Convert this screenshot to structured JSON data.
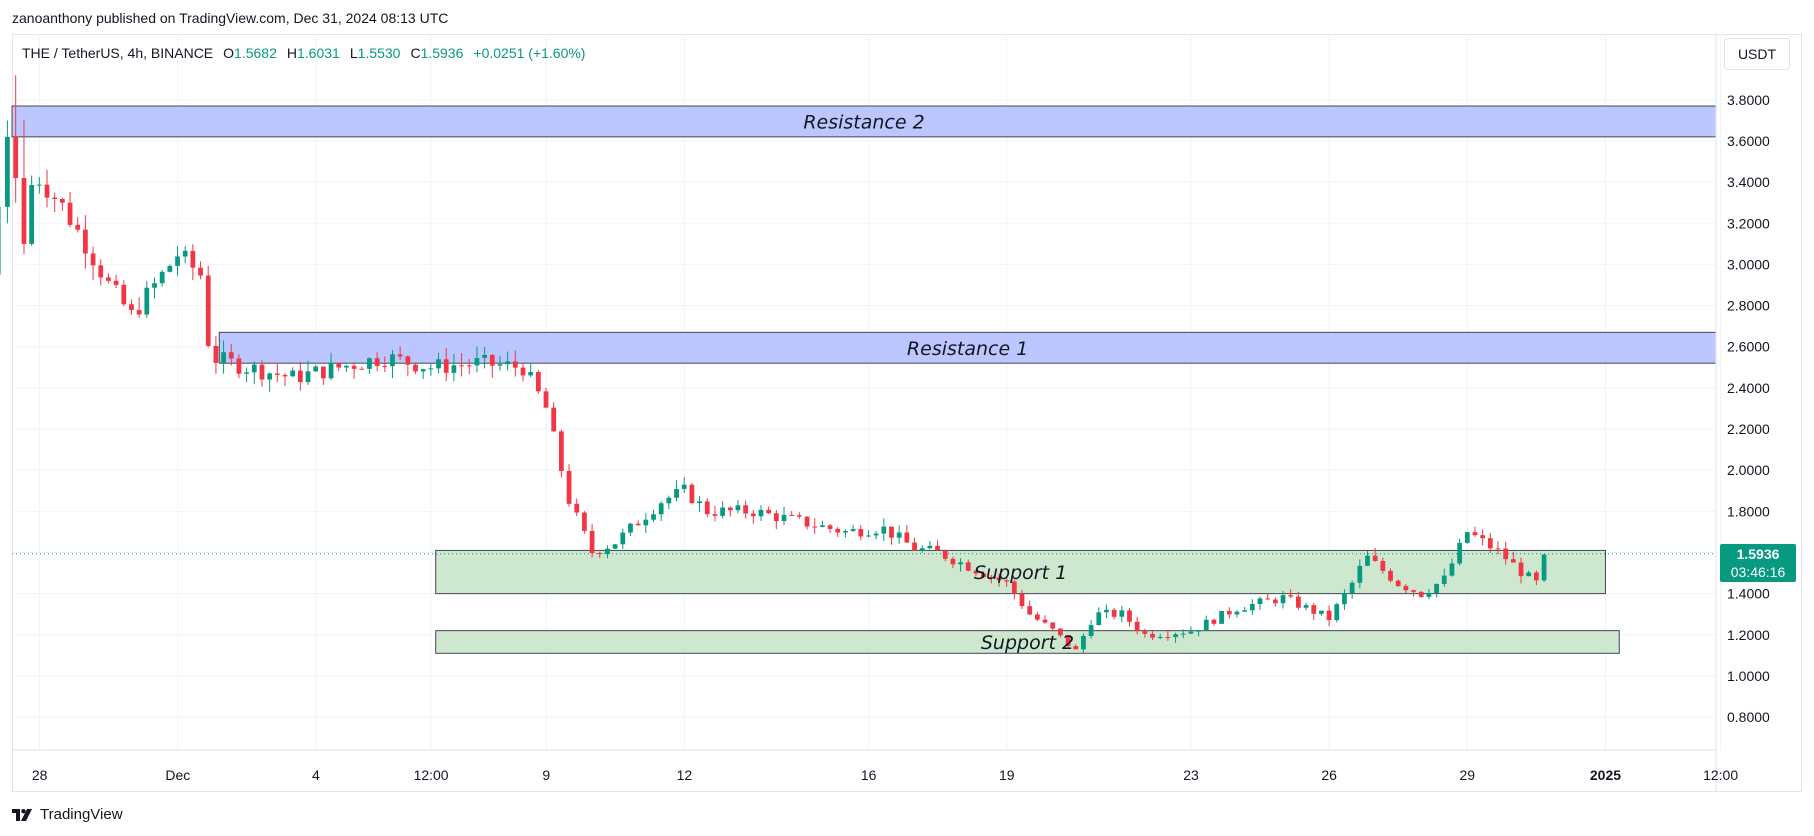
{
  "publisher": "zanoanthony published on TradingView.com, Dec 31, 2024 08:13 UTC",
  "symbol": {
    "name": "THE / TetherUS, 4h, BINANCE",
    "o_label": "O",
    "o": "1.5682",
    "h_label": "H",
    "h": "1.6031",
    "l_label": "L",
    "l": "1.5530",
    "c_label": "C",
    "c": "1.5936",
    "change": "+0.0251 (+1.60%)"
  },
  "currency": "USDT",
  "last_price": {
    "price": "1.5936",
    "countdown": "03:46:16"
  },
  "footer": {
    "brand": "TradingView"
  },
  "colors": {
    "up": "#089981",
    "down": "#f23645",
    "resistance": "#b9c4ff",
    "support": "#c8e6c9"
  },
  "chart_data": {
    "type": "candlestick",
    "y_axis": {
      "min": 0.64,
      "max": 4.12,
      "ticks": [
        {
          "value": 0.8,
          "label": "0.8000"
        },
        {
          "value": 1.0,
          "label": "1.0000"
        },
        {
          "value": 1.2,
          "label": "1.2000"
        },
        {
          "value": 1.4,
          "label": "1.4000"
        },
        {
          "value": 1.6,
          "label": "1.6000"
        },
        {
          "value": 1.8,
          "label": "1.8000"
        },
        {
          "value": 2.0,
          "label": "2.0000"
        },
        {
          "value": 2.2,
          "label": "2.2000"
        },
        {
          "value": 2.4,
          "label": "2.4000"
        },
        {
          "value": 2.6,
          "label": "2.6000"
        },
        {
          "value": 2.8,
          "label": "2.8000"
        },
        {
          "value": 3.0,
          "label": "3.0000"
        },
        {
          "value": 3.2,
          "label": "3.2000"
        },
        {
          "value": 3.4,
          "label": "3.4000"
        },
        {
          "value": 3.6,
          "label": "3.6000"
        },
        {
          "value": 3.8,
          "label": "3.8000"
        }
      ]
    },
    "x_axis": {
      "min": -0.1,
      "max": 36.9,
      "ticks": [
        {
          "value": 0.5,
          "label": "28",
          "bold": false
        },
        {
          "value": 3.5,
          "label": "Dec",
          "bold": false
        },
        {
          "value": 6.5,
          "label": "4",
          "bold": false
        },
        {
          "value": 9.0,
          "label": "12:00",
          "bold": false
        },
        {
          "value": 11.5,
          "label": "9",
          "bold": false
        },
        {
          "value": 14.5,
          "label": "12",
          "bold": false
        },
        {
          "value": 18.5,
          "label": "16",
          "bold": false
        },
        {
          "value": 21.5,
          "label": "19",
          "bold": false
        },
        {
          "value": 25.5,
          "label": "23",
          "bold": false
        },
        {
          "value": 28.5,
          "label": "26",
          "bold": false
        },
        {
          "value": 31.5,
          "label": "29",
          "bold": false
        },
        {
          "value": 34.5,
          "label": "2025",
          "bold": true
        },
        {
          "value": 37.0,
          "label": "12:00",
          "bold": false
        }
      ]
    },
    "zones": [
      {
        "label": "Resistance 2",
        "kind": "resistance",
        "x_start": -0.1,
        "x_end": 36.9,
        "y_low": 3.62,
        "y_high": 3.77
      },
      {
        "label": "Resistance 1",
        "kind": "resistance",
        "x_start": 4.4,
        "x_end": 36.9,
        "y_low": 2.52,
        "y_high": 2.67
      },
      {
        "label": "Support 1",
        "kind": "support",
        "x_start": 9.1,
        "x_end": 34.5,
        "y_low": 1.4,
        "y_high": 1.61
      },
      {
        "label": "Support 2",
        "kind": "support",
        "x_start": 9.1,
        "x_end": 34.8,
        "y_low": 1.11,
        "y_high": 1.22
      }
    ],
    "path": [
      [
        -0.9,
        0.66
      ],
      [
        -0.8,
        3.35
      ],
      [
        -0.4,
        3.25
      ],
      [
        0.5,
        3.42
      ],
      [
        1.0,
        3.28
      ],
      [
        1.5,
        3.1
      ],
      [
        2.0,
        2.9
      ],
      [
        2.5,
        2.75
      ],
      [
        3.0,
        2.9
      ],
      [
        3.5,
        3.05
      ],
      [
        4.0,
        2.95
      ],
      [
        4.2,
        2.55
      ],
      [
        5.0,
        2.5
      ],
      [
        6.0,
        2.45
      ],
      [
        7.0,
        2.5
      ],
      [
        8.0,
        2.55
      ],
      [
        9.0,
        2.5
      ],
      [
        10.0,
        2.52
      ],
      [
        11.0,
        2.5
      ],
      [
        11.5,
        2.3
      ],
      [
        12.0,
        1.85
      ],
      [
        12.5,
        1.6
      ],
      [
        13.0,
        1.65
      ],
      [
        14.0,
        1.85
      ],
      [
        14.5,
        1.9
      ],
      [
        15.0,
        1.8
      ],
      [
        16.0,
        1.8
      ],
      [
        17.0,
        1.75
      ],
      [
        18.0,
        1.7
      ],
      [
        18.8,
        1.72
      ],
      [
        19.5,
        1.62
      ],
      [
        20.0,
        1.6
      ],
      [
        21.0,
        1.5
      ],
      [
        21.5,
        1.45
      ],
      [
        22.0,
        1.3
      ],
      [
        22.5,
        1.22
      ],
      [
        23.0,
        1.12
      ],
      [
        23.4,
        1.3
      ],
      [
        24.0,
        1.3
      ],
      [
        24.5,
        1.2
      ],
      [
        25.5,
        1.22
      ],
      [
        26.5,
        1.33
      ],
      [
        27.5,
        1.38
      ],
      [
        28.5,
        1.28
      ],
      [
        29.0,
        1.45
      ],
      [
        29.3,
        1.58
      ],
      [
        30.0,
        1.45
      ],
      [
        30.5,
        1.4
      ],
      [
        31.0,
        1.47
      ],
      [
        31.5,
        1.7
      ],
      [
        32.2,
        1.6
      ],
      [
        32.7,
        1.5
      ],
      [
        33.0,
        1.45
      ],
      [
        33.2,
        1.59
      ]
    ],
    "candles": [
      {
        "x": -0.9,
        "o": 2.42,
        "h": 2.42,
        "l": 0.64,
        "c": 0.66
      },
      {
        "x": -0.86,
        "o": 0.66,
        "h": 2.4,
        "l": 0.64,
        "c": 2.38
      },
      {
        "x": -0.8,
        "o": 2.38,
        "h": 3.48,
        "l": 2.32,
        "c": 3.35
      },
      {
        "x": -0.68,
        "o": 3.35,
        "h": 4.1,
        "l": 3.1,
        "c": 3.25
      },
      {
        "x": -0.54,
        "o": 3.25,
        "h": 3.7,
        "l": 2.86,
        "c": 2.95
      },
      {
        "x": -0.4,
        "o": 2.95,
        "h": 3.36,
        "l": 2.9,
        "c": 3.28
      },
      {
        "x": -0.2,
        "o": 3.28,
        "h": 3.7,
        "l": 3.2,
        "c": 3.62
      },
      {
        "x": -0.02,
        "o": 3.62,
        "h": 3.92,
        "l": 3.3,
        "c": 3.42
      },
      {
        "x": 0.16,
        "o": 3.42,
        "h": 3.7,
        "l": 3.05,
        "c": 3.1
      }
    ]
  }
}
